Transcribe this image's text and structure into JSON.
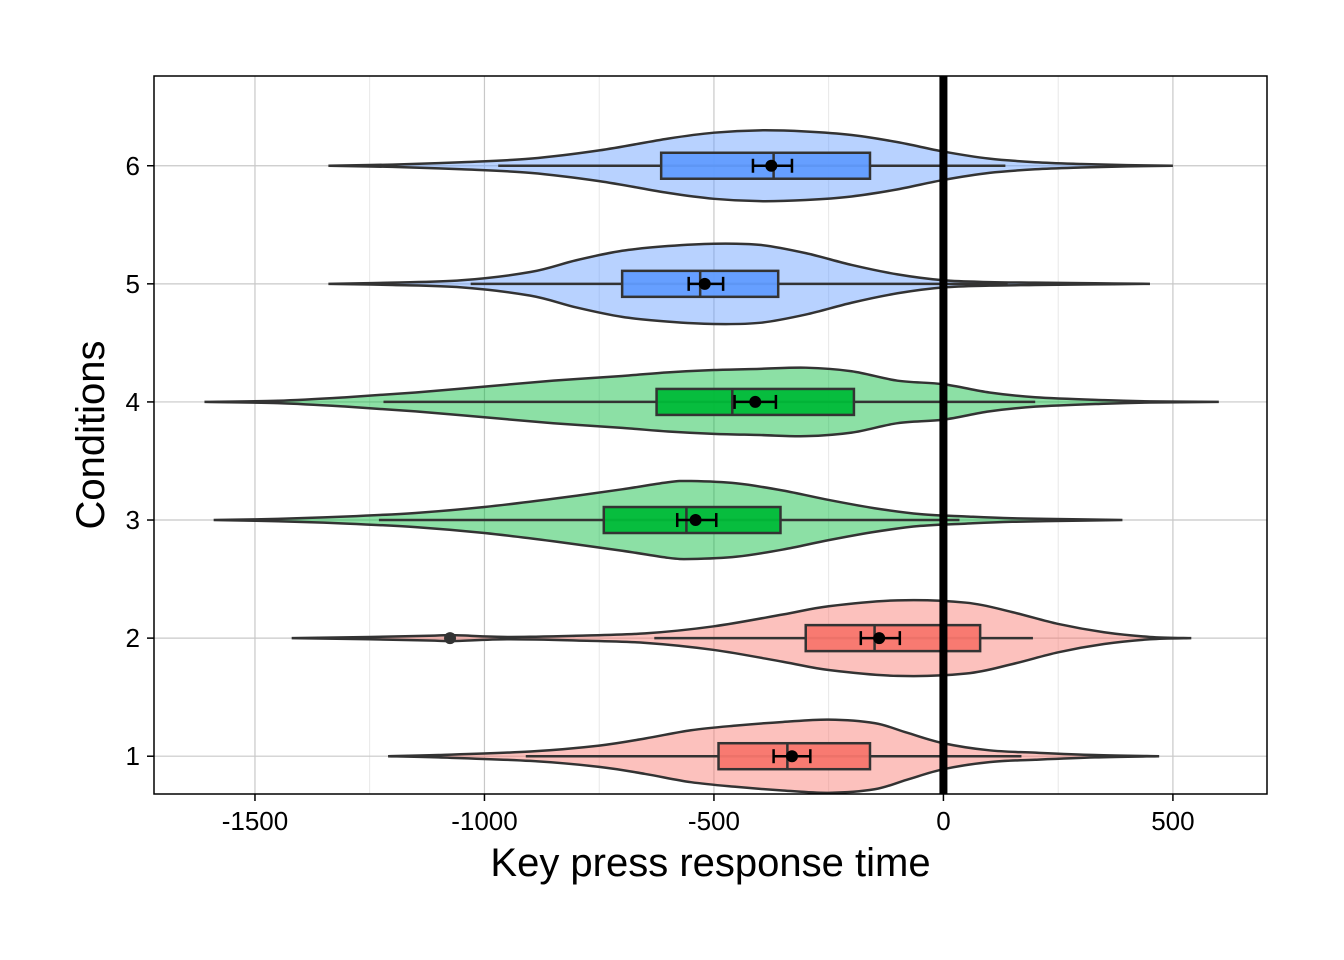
{
  "chart_data": {
    "type": "violin",
    "orientation": "horizontal",
    "title": "",
    "xlabel": "Key press response time",
    "ylabel": "Conditions",
    "xlim": [
      -1720,
      705
    ],
    "ylim": [
      0.68,
      6.76
    ],
    "xticks": [
      -1500,
      -1000,
      -500,
      0,
      500
    ],
    "xtick_labels": [
      "-1500",
      "-1000",
      "-500",
      "0",
      "500"
    ],
    "yticks": [
      1,
      2,
      3,
      4,
      5,
      6
    ],
    "ytick_labels": [
      "1",
      "2",
      "3",
      "4",
      "5",
      "6"
    ],
    "grid": true,
    "reference_line_x": 0,
    "categories": [
      "1",
      "2",
      "3",
      "4",
      "5",
      "6"
    ],
    "series": [
      {
        "condition": "1",
        "color": "#f8766d",
        "violin_profile": [
          [
            -1210,
            0
          ],
          [
            -1100,
            0.01
          ],
          [
            -900,
            0.04
          ],
          [
            -750,
            0.09
          ],
          [
            -650,
            0.15
          ],
          [
            -550,
            0.22
          ],
          [
            -450,
            0.26
          ],
          [
            -350,
            0.29
          ],
          [
            -250,
            0.31
          ],
          [
            -150,
            0.28
          ],
          [
            -80,
            0.2
          ],
          [
            0,
            0.11
          ],
          [
            100,
            0.05
          ],
          [
            200,
            0.03
          ],
          [
            330,
            0.01
          ],
          [
            470,
            0
          ]
        ],
        "whisker_low": -910,
        "q1": -490,
        "median": -340,
        "q3": -160,
        "whisker_high": 170,
        "mean": -330,
        "ci_low": -370,
        "ci_high": -290,
        "outliers": []
      },
      {
        "condition": "2",
        "color": "#f8766d",
        "violin_profile": [
          [
            -1420,
            0
          ],
          [
            -1250,
            0.01
          ],
          [
            -1120,
            0.02
          ],
          [
            -1070,
            0.025
          ],
          [
            -950,
            0.01
          ],
          [
            -800,
            0.02
          ],
          [
            -650,
            0.04
          ],
          [
            -500,
            0.1
          ],
          [
            -350,
            0.2
          ],
          [
            -250,
            0.27
          ],
          [
            -100,
            0.32
          ],
          [
            50,
            0.3
          ],
          [
            150,
            0.22
          ],
          [
            250,
            0.12
          ],
          [
            350,
            0.05
          ],
          [
            450,
            0.01
          ],
          [
            540,
            0
          ]
        ],
        "whisker_low": -630,
        "q1": -300,
        "median": -150,
        "q3": 80,
        "whisker_high": 195,
        "mean": -140,
        "ci_low": -180,
        "ci_high": -95,
        "outliers": [
          -1075
        ]
      },
      {
        "condition": "3",
        "color": "#00ba38",
        "violin_profile": [
          [
            -1590,
            0
          ],
          [
            -1450,
            0.01
          ],
          [
            -1300,
            0.03
          ],
          [
            -1150,
            0.06
          ],
          [
            -1000,
            0.11
          ],
          [
            -850,
            0.18
          ],
          [
            -700,
            0.26
          ],
          [
            -600,
            0.32
          ],
          [
            -550,
            0.33
          ],
          [
            -450,
            0.31
          ],
          [
            -350,
            0.25
          ],
          [
            -250,
            0.17
          ],
          [
            -150,
            0.1
          ],
          [
            -50,
            0.05
          ],
          [
            50,
            0.03
          ],
          [
            150,
            0.015
          ],
          [
            300,
            0.005
          ],
          [
            390,
            0
          ]
        ],
        "whisker_low": -1230,
        "q1": -740,
        "median": -560,
        "q3": -355,
        "whisker_high": 35,
        "mean": -540,
        "ci_low": -580,
        "ci_high": -495,
        "outliers": []
      },
      {
        "condition": "4",
        "color": "#00ba38",
        "violin_profile": [
          [
            -1610,
            0
          ],
          [
            -1450,
            0.01
          ],
          [
            -1300,
            0.04
          ],
          [
            -1150,
            0.08
          ],
          [
            -1000,
            0.13
          ],
          [
            -850,
            0.18
          ],
          [
            -700,
            0.22
          ],
          [
            -600,
            0.25
          ],
          [
            -500,
            0.27
          ],
          [
            -400,
            0.28
          ],
          [
            -300,
            0.29
          ],
          [
            -200,
            0.26
          ],
          [
            -100,
            0.18
          ],
          [
            0,
            0.15
          ],
          [
            100,
            0.08
          ],
          [
            200,
            0.04
          ],
          [
            350,
            0.015
          ],
          [
            450,
            0.005
          ],
          [
            600,
            0
          ]
        ],
        "whisker_low": -1220,
        "q1": -625,
        "median": -460,
        "q3": -195,
        "whisker_high": 200,
        "mean": -410,
        "ci_low": -455,
        "ci_high": -365,
        "outliers": []
      },
      {
        "condition": "5",
        "color": "#619cff",
        "violin_profile": [
          [
            -1340,
            0
          ],
          [
            -1200,
            0.01
          ],
          [
            -1050,
            0.03
          ],
          [
            -900,
            0.1
          ],
          [
            -800,
            0.2
          ],
          [
            -700,
            0.28
          ],
          [
            -600,
            0.32
          ],
          [
            -500,
            0.34
          ],
          [
            -400,
            0.33
          ],
          [
            -300,
            0.26
          ],
          [
            -200,
            0.16
          ],
          [
            -100,
            0.08
          ],
          [
            0,
            0.03
          ],
          [
            100,
            0.015
          ],
          [
            200,
            0.01
          ],
          [
            330,
            0.005
          ],
          [
            450,
            0
          ]
        ],
        "whisker_low": -1030,
        "q1": -700,
        "median": -530,
        "q3": -360,
        "whisker_high": 140,
        "mean": -520,
        "ci_low": -555,
        "ci_high": -480,
        "outliers": []
      },
      {
        "condition": "6",
        "color": "#619cff",
        "violin_profile": [
          [
            -1340,
            0
          ],
          [
            -1200,
            0.01
          ],
          [
            -1050,
            0.03
          ],
          [
            -900,
            0.06
          ],
          [
            -750,
            0.13
          ],
          [
            -600,
            0.23
          ],
          [
            -500,
            0.28
          ],
          [
            -400,
            0.3
          ],
          [
            -300,
            0.29
          ],
          [
            -200,
            0.26
          ],
          [
            -100,
            0.2
          ],
          [
            0,
            0.12
          ],
          [
            100,
            0.06
          ],
          [
            200,
            0.03
          ],
          [
            300,
            0.015
          ],
          [
            400,
            0.005
          ],
          [
            500,
            0
          ]
        ],
        "whisker_low": -970,
        "q1": -615,
        "median": -370,
        "q3": -160,
        "whisker_high": 135,
        "mean": -375,
        "ci_low": -415,
        "ci_high": -330,
        "outliers": []
      }
    ]
  }
}
